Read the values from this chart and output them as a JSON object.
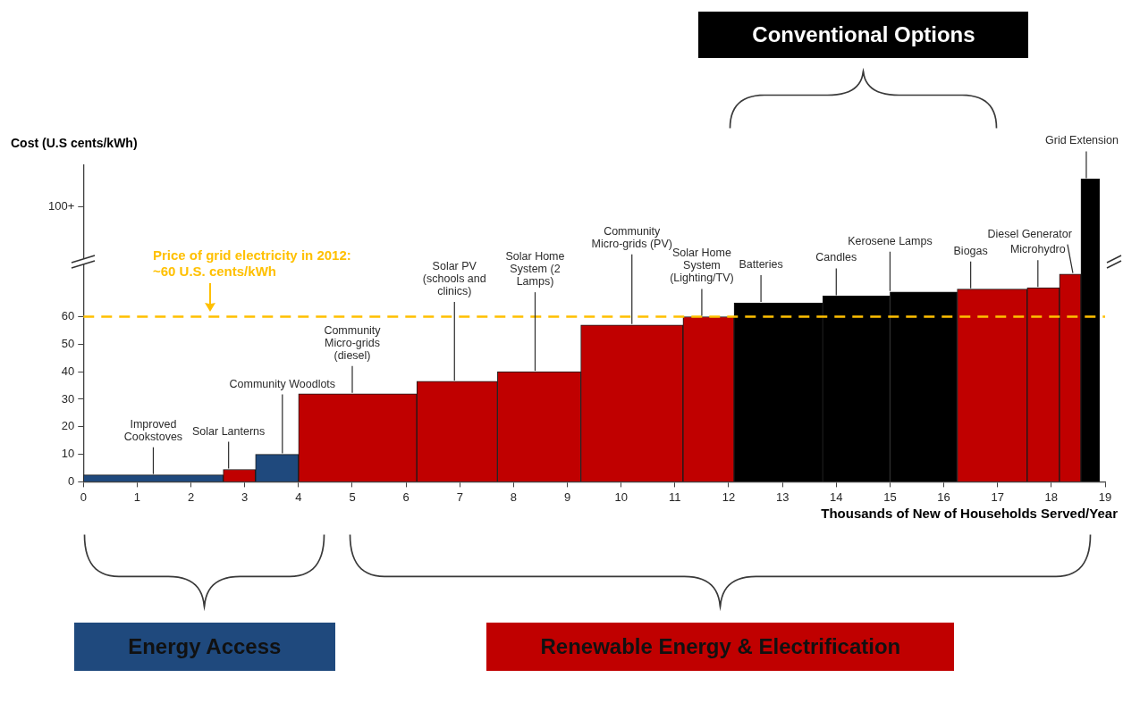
{
  "chart_data": {
    "type": "histogram",
    "bins": [
      0,
      2.6,
      3.2,
      4,
      6.2,
      7.7,
      9.25,
      11.15,
      12.1,
      13.75,
      15,
      16.25,
      17.55,
      18.15,
      18.55,
      18.9
    ],
    "values": [
      2.5,
      4.5,
      10,
      32,
      36.5,
      40,
      57,
      60,
      65,
      67.5,
      69,
      70,
      70.5,
      75.5,
      110
    ],
    "colors": [
      "#1f497d",
      "#c00000",
      "#1f497d",
      "#c00000",
      "#c00000",
      "#c00000",
      "#c00000",
      "#c00000",
      "#000000",
      "#000000",
      "#000000",
      "#c00000",
      "#c00000",
      "#c00000",
      "#000000"
    ],
    "xlabel": "Thousands of New of Households Served/Year",
    "ylabel": "Cost (U.S cents/kWh)",
    "xlim": [
      0,
      19
    ],
    "xticks": [
      0,
      1,
      2,
      3,
      4,
      5,
      6,
      7,
      8,
      9,
      10,
      11,
      12,
      13,
      14,
      15,
      16,
      17,
      18,
      19
    ],
    "ylim": [
      0,
      115
    ],
    "yticks": [
      0,
      10,
      20,
      30,
      40,
      50,
      60,
      {
        "value": 100,
        "label": "100+"
      }
    ],
    "ref_lines": [
      {
        "axis": "y",
        "value": 60,
        "label": "Price of grid electricity in 2012:\n~60 U.S. cents/kWh",
        "color": "#ffc000",
        "line_style": "dashed"
      }
    ],
    "annotations": [
      "Conventional Options",
      {
        "text": "Improved\nCookstoves",
        "x": 1.3,
        "y": 2.5
      },
      {
        "text": "Solar Lanterns",
        "x": 2.7,
        "y": 4.5
      },
      {
        "text": "Community Woodlots",
        "x": 3.7,
        "y": 10
      },
      {
        "text": "Community\nMicro-grids\n(diesel)",
        "x": 5.0,
        "y": 32
      },
      {
        "text": "Solar PV\n(schools and\nclinics)",
        "x": 6.9,
        "y": 36.5
      },
      {
        "text": "Solar Home\nSystem (2\nLamps)",
        "x": 8.4,
        "y": 40
      },
      {
        "text": "Community\nMicro-grids (PV)",
        "x": 10.2,
        "y": 57
      },
      {
        "text": "Solar Home\nSystem\n(Lighting/TV)",
        "x": 11.5,
        "y": 60
      },
      {
        "text": "Batteries",
        "x": 12.6,
        "y": 65
      },
      {
        "text": "Candles",
        "x": 14.0,
        "y": 67.5
      },
      {
        "text": "Kerosene Lamps",
        "x": 15.0,
        "y": 69
      },
      {
        "text": "Biogas",
        "x": 16.5,
        "y": 70
      },
      {
        "text": "Microhydro",
        "x": 17.75,
        "y": 70.5
      },
      {
        "text": "Diesel Generator",
        "x": 18.4,
        "y": 75.5
      },
      {
        "text": "Grid Extension",
        "x": 18.65,
        "y": 110
      },
      "Energy Access",
      "Renewable Energy & Electrification"
    ]
  }
}
